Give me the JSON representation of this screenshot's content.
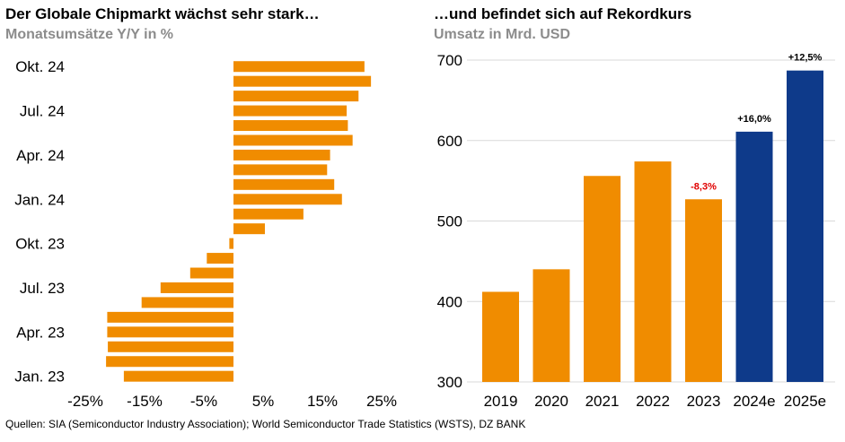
{
  "left": {
    "title": "Der Globale Chipmarkt wächst sehr stark…",
    "subtitle": "Monatsumsätze Y/Y in %"
  },
  "right": {
    "title": "…und befindet sich auf Rekordkurs",
    "subtitle": "Umsatz in Mrd. USD"
  },
  "source": "Quellen: SIA (Semiconductor Industry Association); World Semiconductor Trade Statistics (WSTS), DZ BANK",
  "colors": {
    "orange": "#f08c00",
    "navy": "#0e3a8a",
    "red": "#e00000",
    "grid": "#d9d9d9"
  },
  "chart_data": [
    {
      "type": "bar",
      "orientation": "horizontal",
      "title": "Der Globale Chipmarkt wächst sehr stark…",
      "subtitle": "Monatsumsätze Y/Y in %",
      "unit": "%",
      "categories": [
        "Jan. 23",
        "Feb. 23",
        "Mär. 23",
        "Apr. 23",
        "Mai 23",
        "Jun. 23",
        "Jul. 23",
        "Aug. 23",
        "Sep. 23",
        "Okt. 23",
        "Nov. 23",
        "Dez. 23",
        "Jan. 24",
        "Feb. 24",
        "Mär. 24",
        "Apr. 24",
        "Mai 24",
        "Jun. 24",
        "Jul. 24",
        "Aug. 24",
        "Sep. 24",
        "Okt. 24"
      ],
      "category_labels": [
        "Jan. 23",
        "",
        "",
        "Apr. 23",
        "",
        "",
        "Jul. 23",
        "",
        "",
        "Okt. 23",
        "",
        "",
        "Jan. 24",
        "",
        "",
        "Apr. 24",
        "",
        "",
        "Jul. 24",
        "",
        "",
        "Okt. 24"
      ],
      "values": [
        -18.5,
        -21.5,
        -21.2,
        -21.3,
        -21.3,
        -15.5,
        -12.3,
        -7.3,
        -4.5,
        -0.7,
        5.3,
        11.8,
        18.3,
        17.0,
        15.8,
        16.3,
        20.1,
        19.3,
        19.1,
        21.1,
        23.2,
        22.1
      ],
      "xlim": [
        -25,
        25
      ],
      "xticks": [
        "-25%",
        "-15%",
        "-5%",
        "5%",
        "15%",
        "25%"
      ],
      "xtick_values": [
        -25,
        -15,
        -5,
        5,
        15,
        25
      ],
      "color": "#f08c00"
    },
    {
      "type": "bar",
      "title": "…und befindet sich auf Rekordkurs",
      "subtitle": "Umsatz in Mrd. USD",
      "unit": "Mrd. USD",
      "categories": [
        "2019",
        "2020",
        "2021",
        "2022",
        "2023",
        "2024e",
        "2025e"
      ],
      "values": [
        412,
        440,
        556,
        574,
        527,
        611,
        687
      ],
      "ylim": [
        300,
        700
      ],
      "yticks": [
        "300",
        "400",
        "500",
        "600",
        "700"
      ],
      "ytick_values": [
        300,
        400,
        500,
        600,
        700
      ],
      "bar_colors": [
        "#f08c00",
        "#f08c00",
        "#f08c00",
        "#f08c00",
        "#f08c00",
        "#0e3a8a",
        "#0e3a8a"
      ],
      "annotations": [
        {
          "category": "2023",
          "text": "-8,3%",
          "color": "#e00000"
        },
        {
          "category": "2024e",
          "text": "+16,0%",
          "color": "#000000"
        },
        {
          "category": "2025e",
          "text": "+12,5%",
          "color": "#000000"
        }
      ]
    }
  ]
}
